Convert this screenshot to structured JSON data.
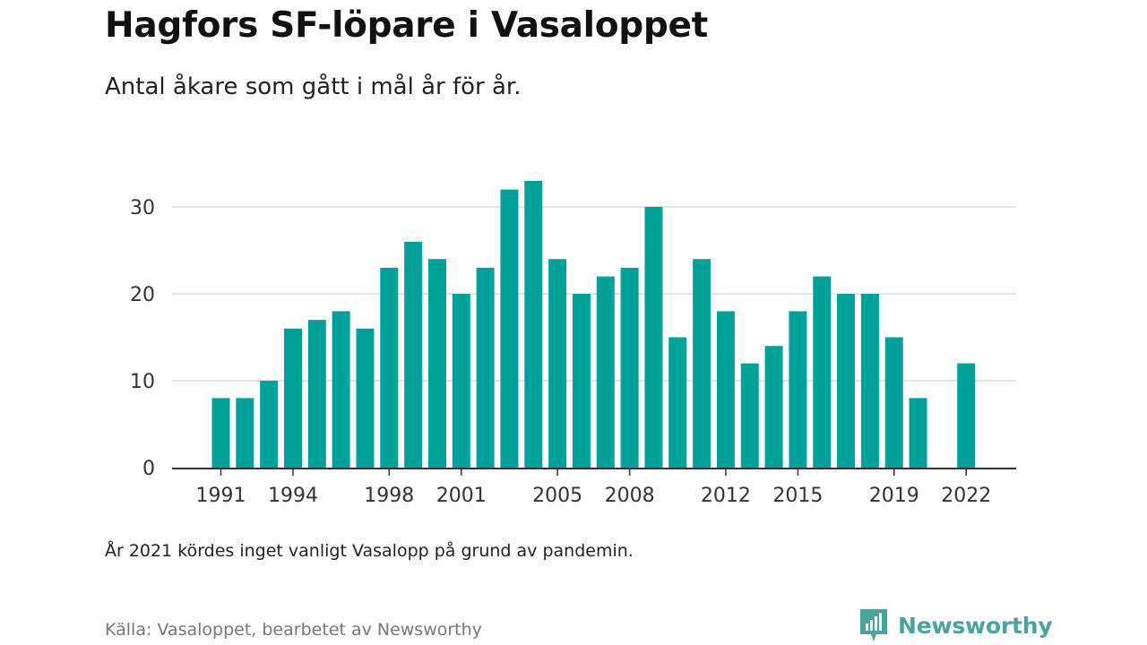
{
  "title": "Hagfors SF-löpare i Vasaloppet",
  "subtitle": "Antal åkare som gått i mål år för år.",
  "note": "År 2021 kördes inget vanligt Vasalopp på grund av pandemin.",
  "source": "Källa: Vasaloppet, bearbetet av Newsworthy",
  "brand": "Newsworthy",
  "colors": {
    "bar": "#00a19a",
    "grid": "#d9d9d9",
    "axis": "#333333",
    "brand": "#4ba3a0"
  },
  "chart_data": {
    "type": "bar",
    "title": "Hagfors SF-löpare i Vasaloppet",
    "subtitle": "Antal åkare som gått i mål år för år.",
    "xlabel": "",
    "ylabel": "",
    "ylim": [
      0,
      34
    ],
    "grid": true,
    "yticks": [
      0,
      10,
      20,
      30
    ],
    "xticks": [
      1991,
      1994,
      1998,
      2001,
      2005,
      2008,
      2012,
      2015,
      2019,
      2022
    ],
    "categories": [
      1991,
      1992,
      1993,
      1994,
      1995,
      1996,
      1997,
      1998,
      1999,
      2000,
      2001,
      2002,
      2003,
      2004,
      2005,
      2006,
      2007,
      2008,
      2009,
      2010,
      2011,
      2012,
      2013,
      2014,
      2015,
      2016,
      2017,
      2018,
      2019,
      2020,
      2021,
      2022
    ],
    "values": [
      8,
      8,
      10,
      16,
      17,
      18,
      16,
      23,
      26,
      24,
      20,
      23,
      32,
      33,
      24,
      20,
      22,
      23,
      30,
      15,
      24,
      18,
      12,
      14,
      18,
      22,
      20,
      20,
      15,
      8,
      null,
      12
    ]
  }
}
